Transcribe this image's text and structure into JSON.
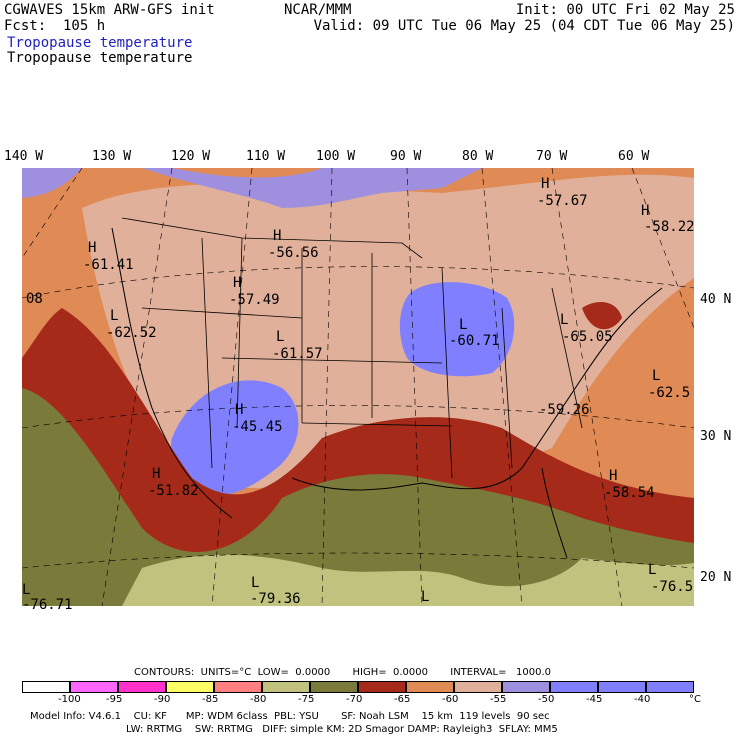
{
  "header": {
    "model": "CGWAVES 15km ARW-GFS init",
    "fcst": "Fcst:  105 h",
    "center": "NCAR/MMM",
    "init": "Init: 00 UTC Fri 02 May 25",
    "valid": "Valid: 09 UTC Tue 06 May 25 (04 CDT Tue 06 May 25)",
    "field1": "Tropopause temperature",
    "field2": "Tropopause temperature"
  },
  "longitudes": [
    "140 W",
    "130 W",
    "120 W",
    "110 W",
    "100 W",
    "90 W",
    "80 W",
    "70 W",
    "60 W"
  ],
  "latitudes": [
    "40 N",
    "30 N",
    "20 N"
  ],
  "map_labels": [
    {
      "hl": "H",
      "value": "-57.67"
    },
    {
      "hl": "H",
      "value": "-58.22"
    },
    {
      "hl": "H",
      "value": "-56.56"
    },
    {
      "hl": "H",
      "value": "-61.41"
    },
    {
      "hl": "H",
      "value": "-57.49"
    },
    {
      "hl": "L",
      "value": "-62.52"
    },
    {
      "hl": "L",
      "value": "-61.57"
    },
    {
      "hl": "L",
      "value": "-60.71"
    },
    {
      "hl": "L",
      "value": "-65.05"
    },
    {
      "hl": "L",
      "value": "-62.5"
    },
    {
      "hl": "",
      "value": "-59.26"
    },
    {
      "hl": "H",
      "value": "-45.45"
    },
    {
      "hl": "H",
      "value": "-51.82"
    },
    {
      "hl": "H",
      "value": "-58.54"
    },
    {
      "hl": "L",
      "value": "-79.36"
    },
    {
      "hl": "L",
      "value": "-76.71"
    },
    {
      "hl": "L",
      "value": "-76.5"
    },
    {
      "hl": "",
      "value": "08"
    },
    {
      "hl": "L",
      "value": ""
    }
  ],
  "contours": {
    "text": "CONTOURS:  UNITS=°C  LOW=  0.0000       HIGH=  0.0000       INTERVAL=   1000.0"
  },
  "colorbar": {
    "colors": [
      "#ffffff",
      "#ff66ff",
      "#ff33cc",
      "#ffff66",
      "#ff8080",
      "#c2c27f",
      "#7a7a3a",
      "#a52a1a",
      "#e08a55",
      "#e0b09a",
      "#9f8fdf",
      "#7f7fff",
      "#8080ff"
    ],
    "ticks": [
      "-100",
      "-95",
      "-90",
      "-85",
      "-80",
      "-75",
      "-70",
      "-65",
      "-60",
      "-55",
      "-50",
      "-45",
      "-40",
      "°C"
    ]
  },
  "model_info": {
    "line1": "Model Info: V4.6.1    CU: KF      MP: WDM 6class  PBL: YSU       SF: Noah LSM    15 km  119 levels  90 sec",
    "line2": "LW: RRTMG    SW: RRTMG   DIFF: simple KM: 2D Smagor DAMP: Rayleigh3  SFLAY: MM5"
  }
}
